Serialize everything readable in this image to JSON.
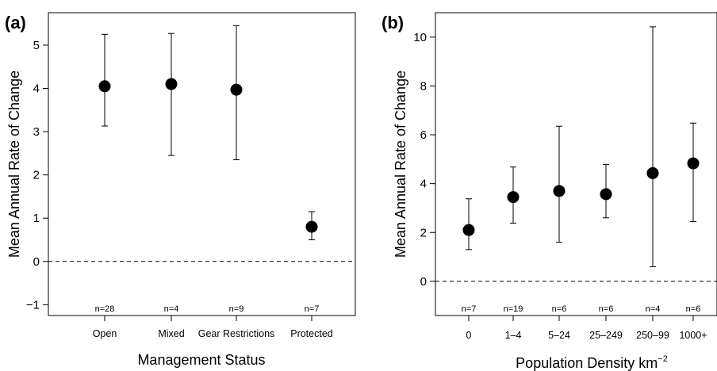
{
  "chart_data": [
    {
      "type": "scatter",
      "panel_label": "(a)",
      "xlabel": "Management Status",
      "ylabel": "Mean Annual Rate of Change",
      "ylim": [
        -1.25,
        5.75
      ],
      "yticks": [
        "−1",
        "0",
        "1",
        "2",
        "3",
        "4",
        "5"
      ],
      "reference_line": 0,
      "categories": [
        "Open",
        "Mixed",
        "Gear Restrictions",
        "Protected"
      ],
      "values": [
        4.05,
        4.1,
        3.97,
        0.8
      ],
      "lower": [
        3.13,
        2.45,
        2.35,
        0.5
      ],
      "upper": [
        5.25,
        5.27,
        5.45,
        1.15
      ],
      "n_labels": [
        "n=28",
        "n=4",
        "n=9",
        "n=7"
      ]
    },
    {
      "type": "scatter",
      "panel_label": "(b)",
      "xlabel": "Population Density km",
      "xlabel_sup": "−2",
      "ylabel": "Mean Annual Rate of Change",
      "ylim": [
        -1.4,
        11.0
      ],
      "yticks": [
        "0",
        "2",
        "4",
        "6",
        "8",
        "10"
      ],
      "reference_line": 0,
      "categories": [
        "0",
        "1–4",
        "5–24",
        "25–249",
        "250–99",
        "1000+"
      ],
      "values": [
        2.1,
        3.45,
        3.7,
        3.57,
        4.43,
        4.83
      ],
      "lower": [
        1.3,
        2.38,
        1.6,
        2.6,
        0.6,
        2.45
      ],
      "upper": [
        3.38,
        4.68,
        6.35,
        4.78,
        10.42,
        6.48
      ],
      "n_labels": [
        "n=7",
        "n=19",
        "n=6",
        "n=6",
        "n=4",
        "n=6"
      ]
    }
  ]
}
